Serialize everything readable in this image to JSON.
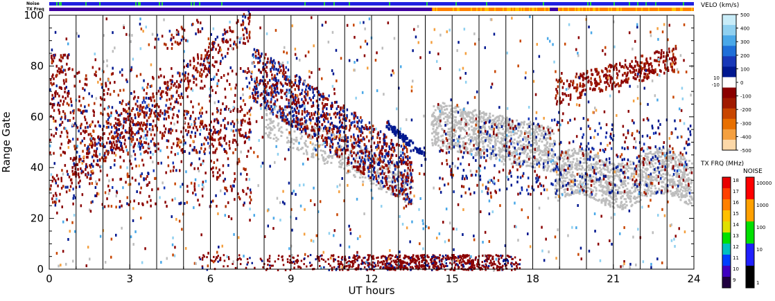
{
  "chart_data": {
    "type": "heatmap",
    "xlabel": "UT hours",
    "ylabel": "Range Gate",
    "xlim": [
      0,
      24
    ],
    "ylim": [
      0,
      100
    ],
    "x_ticks": [
      "0",
      "3",
      "6",
      "9",
      "12",
      "15",
      "18",
      "21",
      "24"
    ],
    "x_tick_values": [
      0,
      3,
      6,
      9,
      12,
      15,
      18,
      21,
      24
    ],
    "y_ticks": [
      "0",
      "20",
      "40",
      "60",
      "80",
      "100"
    ],
    "y_tick_values": [
      0,
      20,
      40,
      60,
      80,
      100
    ],
    "hour_lines": true,
    "top_bars": {
      "noise_label": "Noise",
      "txfreq_label": "TX Freq"
    },
    "velocity_scale": {
      "title": "VELO (km/s)",
      "ticks": [
        "500",
        "400",
        "300",
        "200",
        "100",
        "10",
        "0",
        "-10",
        "-100",
        "-200",
        "-300",
        "-400",
        "-500"
      ],
      "ticks_on_bar": [
        "500",
        "400",
        "300",
        "200",
        "100",
        "0",
        "-100",
        "-200",
        "-300",
        "-400",
        "-500"
      ],
      "side_labels": [
        "10",
        "-10"
      ],
      "colors": [
        "#c8ecf8",
        "#8fd0f0",
        "#4aa8e8",
        "#1f6fd8",
        "#1838b8",
        "#001890",
        "#ffffff",
        "#8a0000",
        "#a01a00",
        "#c84600",
        "#e87000",
        "#f4a040",
        "#fcd8a8"
      ]
    },
    "txfreq_scale": {
      "title": "TX FRQ (MHz)",
      "ticks": [
        "18",
        "17",
        "16",
        "15",
        "14",
        "13",
        "12",
        "11",
        "10",
        "9"
      ],
      "colors": [
        "#e80000",
        "#ff4000",
        "#ff8000",
        "#ffc000",
        "#e0e000",
        "#00e000",
        "#00c0c0",
        "#0040ff",
        "#4000c0",
        "#200040"
      ]
    },
    "noise_scale": {
      "title": "NOISE",
      "ticks": [
        "10000",
        "1000",
        "100",
        "10",
        "1"
      ],
      "colors": [
        "#ff0000",
        "#ffa000",
        "#00e000",
        "#2020ff",
        "#000000"
      ]
    },
    "features": [
      {
        "name": "ground scatter band",
        "time_range": [
          14.2,
          23.9
        ],
        "gate_range": [
          28,
          66
        ],
        "color": "#bdbdbd"
      },
      {
        "name": "morning structure",
        "time_range": [
          0,
          7.5
        ],
        "gate_range": [
          20,
          98
        ],
        "color": "#8a0000"
      },
      {
        "name": "evening structure",
        "time_range": [
          7.5,
          13.5
        ],
        "gate_range": [
          25,
          95
        ],
        "color": "#8a0000"
      },
      {
        "name": "near-range echoes",
        "time_range": [
          7,
          16
        ],
        "gate_range": [
          0,
          6
        ],
        "color": "#8a0000"
      }
    ]
  }
}
